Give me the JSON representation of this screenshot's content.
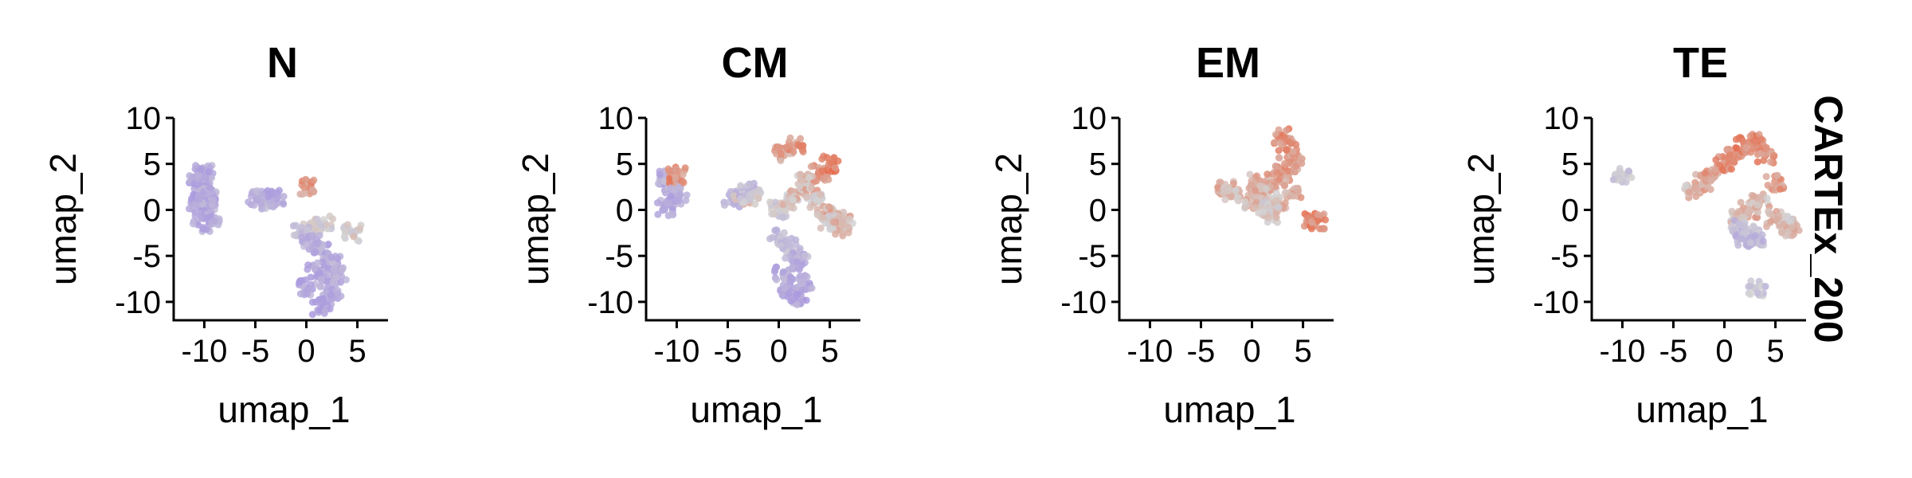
{
  "strip_label": "CARTEx_200",
  "chart_data": [
    {
      "type": "scatter",
      "title": "N",
      "xlabel": "umap_1",
      "ylabel": "umap_2",
      "xlim": [
        -13,
        8
      ],
      "ylim": [
        -12,
        10
      ],
      "xticks": [
        -10,
        -5,
        0,
        5
      ],
      "xtick_labels": [
        "-10",
        "-5",
        "0",
        "5"
      ],
      "yticks": [
        10,
        5,
        0,
        -5,
        -10
      ],
      "ytick_labels": [
        "10",
        "5",
        "0",
        "-5",
        "-10"
      ],
      "color_scale": {
        "low": "#a593e0",
        "mid": "#d3d3d3",
        "high": "#e8603c"
      },
      "series": [
        {
          "x": [
            -10.5,
            -10,
            -9.5,
            -10.8,
            -9.8,
            -10.2,
            -9.4,
            -10.6,
            -10,
            -9.7
          ],
          "y": [
            2.8,
            2,
            1.2,
            0.8,
            0,
            -0.8,
            -1.5,
            3.6,
            4,
            1.8
          ],
          "score": [
            0.15,
            0.2,
            0.18,
            0.1,
            0.22,
            0.15,
            0.2,
            0.12,
            0.18,
            0.2
          ]
        },
        {
          "x": [
            -4.8,
            -4,
            -3.5,
            -3
          ],
          "y": [
            1.2,
            1.2,
            1,
            1.4
          ],
          "score": [
            0.2,
            0.2,
            0.25,
            0.2
          ]
        },
        {
          "x": [
            0.3,
            1.8,
            4.5,
            0.5
          ],
          "y": [
            2.6,
            -1.5,
            -2.5,
            -1.8
          ],
          "score": [
            0.75,
            0.45,
            0.5,
            0.5
          ]
        },
        {
          "x": [
            -0.5,
            0.5,
            1.5,
            2.5,
            1,
            2,
            0,
            3,
            2.5,
            1.5
          ],
          "y": [
            -2.5,
            -3.5,
            -4.5,
            -5.5,
            -6.5,
            -7.5,
            -8.5,
            -7,
            -9.5,
            -10.5
          ],
          "score": [
            0.3,
            0.25,
            0.2,
            0.22,
            0.18,
            0.2,
            0.15,
            0.2,
            0.15,
            0.12
          ]
        }
      ]
    },
    {
      "type": "scatter",
      "title": "CM",
      "xlabel": "umap_1",
      "ylabel": "umap_2",
      "xlim": [
        -13,
        8
      ],
      "ylim": [
        -12,
        10
      ],
      "xticks": [
        -10,
        -5,
        0,
        5
      ],
      "xtick_labels": [
        "-10",
        "-5",
        "0",
        "5"
      ],
      "yticks": [
        10,
        5,
        0,
        -5,
        -10
      ],
      "ytick_labels": [
        "10",
        "5",
        "0",
        "-5",
        "-10"
      ],
      "color_scale": {
        "low": "#a593e0",
        "mid": "#d3d3d3",
        "high": "#e8603c"
      },
      "series": [
        {
          "x": [
            -11,
            -10.5,
            -10,
            -11.2,
            -9.8
          ],
          "y": [
            3.5,
            2.5,
            3.8,
            0.2,
            1.5
          ],
          "score": [
            0.2,
            0.25,
            0.8,
            0.2,
            0.2
          ]
        },
        {
          "x": [
            -4.5,
            -3.5,
            -3,
            -2.5
          ],
          "y": [
            1.2,
            1.5,
            2,
            1.5
          ],
          "score": [
            0.25,
            0.6,
            0.3,
            0.5
          ]
        },
        {
          "x": [
            0,
            1,
            2,
            3,
            4,
            5,
            0.5,
            1.5,
            2.5,
            3.5
          ],
          "y": [
            0,
            1,
            2,
            3,
            4,
            5,
            6,
            7,
            3,
            1
          ],
          "score": [
            0.45,
            0.55,
            0.6,
            0.7,
            0.8,
            0.85,
            0.7,
            0.75,
            0.6,
            0.55
          ]
        },
        {
          "x": [
            4.5,
            5.5,
            6.5,
            5,
            6
          ],
          "y": [
            -0.5,
            -1,
            -1.2,
            -1.5,
            -2
          ],
          "score": [
            0.6,
            0.65,
            0.6,
            0.55,
            0.6
          ]
        },
        {
          "x": [
            0,
            1,
            2,
            1.5,
            0.5,
            2.5,
            2,
            1
          ],
          "y": [
            -3,
            -4,
            -5,
            -6,
            -7,
            -8,
            -9.5,
            -9
          ],
          "score": [
            0.35,
            0.3,
            0.25,
            0.22,
            0.2,
            0.18,
            0.15,
            0.15
          ]
        }
      ]
    },
    {
      "type": "scatter",
      "title": "EM",
      "xlabel": "umap_1",
      "ylabel": "umap_2",
      "xlim": [
        -13,
        8
      ],
      "ylim": [
        -12,
        10
      ],
      "xticks": [
        -10,
        -5,
        0,
        5
      ],
      "xtick_labels": [
        "-10",
        "-5",
        "0",
        "5"
      ],
      "yticks": [
        10,
        5,
        0,
        -5,
        -10
      ],
      "ytick_labels": [
        "10",
        "5",
        "0",
        "-5",
        "-10"
      ],
      "color_scale": {
        "low": "#a593e0",
        "mid": "#d3d3d3",
        "high": "#e8603c"
      },
      "series": [
        {
          "x": [
            -2.5,
            -2
          ],
          "y": [
            2.2,
            1.8
          ],
          "score": [
            0.65,
            0.6
          ]
        },
        {
          "x": [
            0,
            1,
            2,
            3,
            4,
            1.5,
            2.5,
            3,
            4,
            0.5,
            3.5,
            2
          ],
          "y": [
            1,
            2,
            3,
            4,
            5,
            0,
            1,
            8,
            2,
            3,
            6.5,
            -0.5
          ],
          "score": [
            0.6,
            0.65,
            0.7,
            0.72,
            0.75,
            0.5,
            0.6,
            0.8,
            0.7,
            0.65,
            0.75,
            0.55
          ]
        },
        {
          "x": [
            5.8,
            6.3
          ],
          "y": [
            -1,
            -1.2
          ],
          "score": [
            0.85,
            0.8
          ]
        }
      ]
    },
    {
      "type": "scatter",
      "title": "TE",
      "xlabel": "umap_1",
      "ylabel": "umap_2",
      "xlim": [
        -13,
        8
      ],
      "ylim": [
        -12,
        10
      ],
      "xticks": [
        -10,
        -5,
        0,
        5
      ],
      "xtick_labels": [
        "-10",
        "-5",
        "0",
        "5"
      ],
      "yticks": [
        10,
        5,
        0,
        -5,
        -10
      ],
      "ytick_labels": [
        "10",
        "5",
        "0",
        "-5",
        "-10"
      ],
      "color_scale": {
        "low": "#a593e0",
        "mid": "#d3d3d3",
        "high": "#e8603c"
      },
      "series": [
        {
          "x": [
            -10
          ],
          "y": [
            3.8
          ],
          "score": [
            0.4
          ]
        },
        {
          "x": [
            -3,
            -2,
            -1,
            0,
            1,
            2,
            3,
            4,
            5,
            2.5,
            3.5,
            1.5
          ],
          "y": [
            2,
            3,
            4,
            5,
            6,
            7,
            7.5,
            6,
            3,
            0,
            1,
            -1
          ],
          "score": [
            0.6,
            0.7,
            0.75,
            0.8,
            0.82,
            0.85,
            0.8,
            0.78,
            0.75,
            0.65,
            0.6,
            0.55
          ]
        },
        {
          "x": [
            5,
            6,
            6.5
          ],
          "y": [
            -1,
            -1.5,
            -2
          ],
          "score": [
            0.6,
            0.55,
            0.6
          ]
        },
        {
          "x": [
            1.5,
            2,
            2.5,
            3,
            3.2
          ],
          "y": [
            -2,
            -3,
            -2.5,
            -3.5,
            -8.5
          ],
          "score": [
            0.3,
            0.25,
            0.35,
            0.3,
            0.4
          ]
        }
      ]
    }
  ]
}
